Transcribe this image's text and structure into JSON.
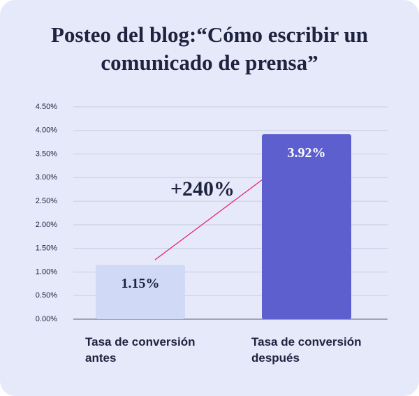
{
  "chart_data": {
    "type": "bar",
    "title": "Posteo del blog:“Cómo escribir un comunicado de prensa”",
    "categories": [
      "Tasa de conversión antes",
      "Tasa de conversión después"
    ],
    "values": [
      1.15,
      3.92
    ],
    "value_labels": [
      "1.15%",
      "3.92%"
    ],
    "colors": [
      "#d0d9f5",
      "#5d5fcf"
    ],
    "label_colors": [
      "#1e2340",
      "#ffffff"
    ],
    "annotation": "+240%",
    "ylim": [
      0,
      4.5
    ],
    "yticks": [
      {
        "value": 0,
        "label": "0.00%"
      },
      {
        "value": 0.5,
        "label": "0.50%"
      },
      {
        "value": 1,
        "label": "1.00%"
      },
      {
        "value": 1.5,
        "label": "1.50%"
      },
      {
        "value": 2,
        "label": "2.00%"
      },
      {
        "value": 2.5,
        "label": "2.50%"
      },
      {
        "value": 3,
        "label": "3.00%"
      },
      {
        "value": 3.5,
        "label": "3.50%"
      },
      {
        "value": 4,
        "label": "4.00%"
      },
      {
        "value": 4.5,
        "label": "4.50%"
      }
    ],
    "grid": true
  }
}
